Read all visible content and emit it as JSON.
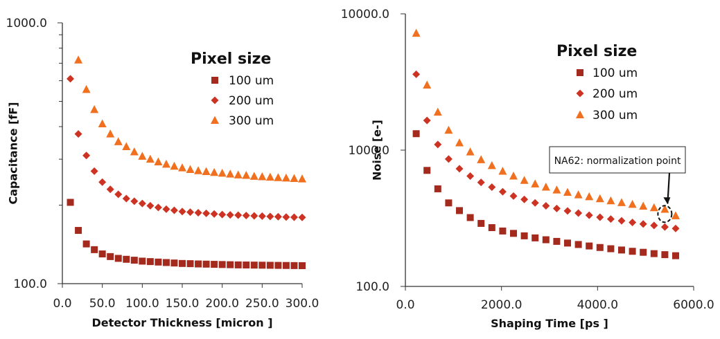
{
  "chart_data": [
    {
      "type": "scatter",
      "title": "",
      "xlabel": "Detector Thickness [micron ]",
      "ylabel": "Capacitance [fF]",
      "xscale": "linear",
      "yscale": "log",
      "xlim": [
        0,
        300
      ],
      "ylim": [
        100,
        1000
      ],
      "xticks": [
        "0.0",
        "50.0",
        "100.0",
        "150.0",
        "200.0",
        "250.0",
        "300.0"
      ],
      "xtick_values": [
        0,
        50,
        100,
        150,
        200,
        250,
        300
      ],
      "yticks": [
        "100.0",
        "1000.0"
      ],
      "ytick_values": [
        100,
        1000
      ],
      "legend_title": "Pixel size",
      "legend_position": "top-right",
      "series": [
        {
          "name": "100 um",
          "marker": "square",
          "color": "#a52a1e",
          "x": [
            10,
            20,
            30,
            40,
            50,
            60,
            70,
            80,
            90,
            100,
            110,
            120,
            130,
            140,
            150,
            160,
            170,
            180,
            190,
            200,
            210,
            220,
            230,
            240,
            250,
            260,
            270,
            280,
            290,
            300
          ],
          "y": [
            205,
            160,
            142,
            135,
            130,
            127,
            125,
            124,
            123,
            122,
            121.5,
            121,
            120.5,
            120,
            119.5,
            119.3,
            119,
            118.8,
            118.6,
            118.4,
            118.2,
            118,
            117.9,
            117.8,
            117.7,
            117.6,
            117.5,
            117.4,
            117.3,
            117.2
          ]
        },
        {
          "name": "200 um",
          "marker": "diamond",
          "color": "#cc3322",
          "x": [
            10,
            20,
            30,
            40,
            50,
            60,
            70,
            80,
            90,
            100,
            110,
            120,
            130,
            140,
            150,
            160,
            170,
            180,
            190,
            200,
            210,
            220,
            230,
            240,
            250,
            260,
            270,
            280,
            290,
            300
          ],
          "y": [
            610,
            375,
            310,
            270,
            245,
            230,
            220,
            212,
            207,
            203,
            199,
            196,
            193,
            191,
            189,
            188,
            187,
            186,
            185,
            184,
            183.5,
            183,
            182.5,
            182,
            181.5,
            181,
            180.5,
            180,
            179.7,
            179.4
          ]
        },
        {
          "name": "300 um",
          "marker": "triangle",
          "color": "#f07020",
          "x": [
            20,
            30,
            40,
            50,
            60,
            70,
            80,
            90,
            100,
            110,
            120,
            130,
            140,
            150,
            160,
            170,
            180,
            190,
            200,
            210,
            220,
            230,
            240,
            250,
            260,
            270,
            280,
            290,
            300
          ],
          "y": [
            720,
            555,
            465,
            410,
            375,
            350,
            335,
            320,
            308,
            300,
            293,
            287,
            282,
            278,
            274,
            271,
            269,
            267,
            265,
            263,
            261,
            260,
            258,
            257,
            256,
            255,
            254,
            253,
            252
          ]
        }
      ]
    },
    {
      "type": "scatter",
      "title": "",
      "xlabel": "Shaping Time [ps ]",
      "ylabel": "Noise [e-]",
      "xscale": "linear",
      "yscale": "log",
      "xlim": [
        0,
        6000
      ],
      "ylim": [
        100,
        10000
      ],
      "xticks": [
        "0.0",
        "2000.0",
        "4000.0",
        "6000.0"
      ],
      "xtick_values": [
        0,
        2000,
        4000,
        6000
      ],
      "yticks": [
        "100.0",
        "1000.0",
        "10000.0"
      ],
      "ytick_values": [
        100,
        1000,
        10000
      ],
      "legend_title": "Pixel size",
      "legend_position": "top-right",
      "annotation": {
        "text": "NA62: normalization point",
        "x": 5400,
        "y": 340
      },
      "series": [
        {
          "name": "100 um",
          "marker": "square",
          "color": "#a52a1e",
          "x": [
            225,
            450,
            675,
            900,
            1125,
            1350,
            1575,
            1800,
            2025,
            2250,
            2475,
            2700,
            2925,
            3150,
            3375,
            3600,
            3825,
            4050,
            4275,
            4500,
            4725,
            4950,
            5175,
            5400,
            5625
          ],
          "y": [
            1320,
            710,
            520,
            410,
            360,
            320,
            290,
            270,
            255,
            245,
            235,
            227,
            220,
            214,
            208,
            203,
            198,
            193,
            189,
            185,
            181,
            178,
            174,
            171,
            168
          ]
        },
        {
          "name": "200 um",
          "marker": "diamond",
          "color": "#cc3322",
          "x": [
            225,
            450,
            675,
            900,
            1125,
            1350,
            1575,
            1800,
            2025,
            2250,
            2475,
            2700,
            2925,
            3150,
            3375,
            3600,
            3825,
            4050,
            4275,
            4500,
            4725,
            4950,
            5175,
            5400,
            5625
          ],
          "y": [
            3600,
            1650,
            1100,
            860,
            730,
            645,
            580,
            535,
            495,
            460,
            435,
            410,
            390,
            373,
            358,
            345,
            333,
            322,
            312,
            303,
            295,
            287,
            280,
            273,
            266
          ]
        },
        {
          "name": "300 um",
          "marker": "triangle",
          "color": "#f07020",
          "x": [
            225,
            450,
            675,
            900,
            1125,
            1350,
            1575,
            1800,
            2025,
            2250,
            2475,
            2700,
            2925,
            3150,
            3375,
            3600,
            3825,
            4050,
            4275,
            4500,
            4725,
            4950,
            5175,
            5400,
            5625
          ],
          "y": [
            7200,
            3000,
            1900,
            1400,
            1130,
            970,
            850,
            770,
            700,
            645,
            600,
            565,
            535,
            510,
            490,
            470,
            455,
            440,
            425,
            412,
            400,
            388,
            378,
            368,
            330
          ]
        }
      ]
    }
  ]
}
